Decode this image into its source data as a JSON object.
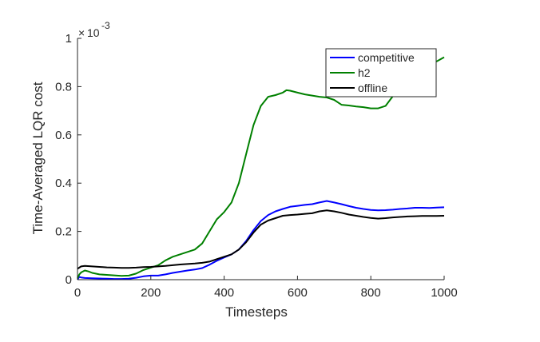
{
  "chart_data": {
    "type": "line",
    "title": "",
    "xlabel": "Timesteps",
    "ylabel": "Time-Averaged LQR cost",
    "y_exponent_label": "10",
    "y_exponent_prefix": "×",
    "y_exponent_power": "-3",
    "xlim": [
      0,
      1000
    ],
    "ylim": [
      0,
      1
    ],
    "xticks": [
      0,
      200,
      400,
      600,
      800,
      1000
    ],
    "yticks": [
      0,
      0.2,
      0.4,
      0.6,
      0.8,
      1
    ],
    "xtick_labels": [
      "0",
      "200",
      "400",
      "600",
      "800",
      "1000"
    ],
    "ytick_labels": [
      "0",
      "0.2",
      "0.4",
      "0.6",
      "0.8",
      "1"
    ],
    "grid": false,
    "legend_position": "top-right",
    "series": [
      {
        "name": "competitive",
        "color": "#0000ff",
        "points": [
          [
            0,
            0.0
          ],
          [
            5,
            0.012
          ],
          [
            10,
            0.009
          ],
          [
            20,
            0.007
          ],
          [
            40,
            0.006
          ],
          [
            60,
            0.005
          ],
          [
            80,
            0.004
          ],
          [
            100,
            0.003
          ],
          [
            120,
            0.003
          ],
          [
            140,
            0.004
          ],
          [
            160,
            0.008
          ],
          [
            180,
            0.014
          ],
          [
            200,
            0.017
          ],
          [
            220,
            0.017
          ],
          [
            240,
            0.022
          ],
          [
            260,
            0.028
          ],
          [
            280,
            0.033
          ],
          [
            300,
            0.038
          ],
          [
            320,
            0.042
          ],
          [
            340,
            0.048
          ],
          [
            360,
            0.062
          ],
          [
            380,
            0.078
          ],
          [
            400,
            0.092
          ],
          [
            420,
            0.105
          ],
          [
            440,
            0.125
          ],
          [
            460,
            0.16
          ],
          [
            480,
            0.205
          ],
          [
            500,
            0.243
          ],
          [
            520,
            0.268
          ],
          [
            540,
            0.283
          ],
          [
            560,
            0.293
          ],
          [
            580,
            0.302
          ],
          [
            600,
            0.306
          ],
          [
            620,
            0.31
          ],
          [
            640,
            0.313
          ],
          [
            660,
            0.32
          ],
          [
            680,
            0.326
          ],
          [
            700,
            0.32
          ],
          [
            720,
            0.313
          ],
          [
            740,
            0.305
          ],
          [
            760,
            0.298
          ],
          [
            780,
            0.293
          ],
          [
            800,
            0.289
          ],
          [
            820,
            0.287
          ],
          [
            840,
            0.288
          ],
          [
            860,
            0.29
          ],
          [
            880,
            0.293
          ],
          [
            900,
            0.295
          ],
          [
            920,
            0.298
          ],
          [
            940,
            0.298
          ],
          [
            960,
            0.297
          ],
          [
            980,
            0.299
          ],
          [
            1000,
            0.3
          ]
        ]
      },
      {
        "name": "h2",
        "color": "#008000",
        "points": [
          [
            0,
            0.005
          ],
          [
            5,
            0.022
          ],
          [
            10,
            0.03
          ],
          [
            20,
            0.038
          ],
          [
            30,
            0.034
          ],
          [
            40,
            0.028
          ],
          [
            60,
            0.022
          ],
          [
            80,
            0.02
          ],
          [
            100,
            0.018
          ],
          [
            120,
            0.016
          ],
          [
            140,
            0.017
          ],
          [
            160,
            0.025
          ],
          [
            180,
            0.04
          ],
          [
            200,
            0.05
          ],
          [
            220,
            0.06
          ],
          [
            240,
            0.08
          ],
          [
            260,
            0.095
          ],
          [
            280,
            0.105
          ],
          [
            300,
            0.115
          ],
          [
            320,
            0.125
          ],
          [
            340,
            0.15
          ],
          [
            360,
            0.2
          ],
          [
            380,
            0.25
          ],
          [
            400,
            0.28
          ],
          [
            420,
            0.32
          ],
          [
            440,
            0.4
          ],
          [
            460,
            0.52
          ],
          [
            480,
            0.64
          ],
          [
            500,
            0.72
          ],
          [
            520,
            0.758
          ],
          [
            540,
            0.765
          ],
          [
            560,
            0.775
          ],
          [
            570,
            0.785
          ],
          [
            580,
            0.783
          ],
          [
            600,
            0.775
          ],
          [
            620,
            0.768
          ],
          [
            640,
            0.763
          ],
          [
            660,
            0.758
          ],
          [
            680,
            0.755
          ],
          [
            700,
            0.745
          ],
          [
            720,
            0.725
          ],
          [
            740,
            0.722
          ],
          [
            760,
            0.718
          ],
          [
            780,
            0.715
          ],
          [
            800,
            0.71
          ],
          [
            820,
            0.71
          ],
          [
            840,
            0.72
          ],
          [
            860,
            0.76
          ],
          [
            880,
            0.82
          ],
          [
            900,
            0.87
          ],
          [
            920,
            0.88
          ],
          [
            940,
            0.89
          ],
          [
            960,
            0.893
          ],
          [
            980,
            0.905
          ],
          [
            1000,
            0.922
          ]
        ]
      },
      {
        "name": "offline",
        "color": "#000000",
        "points": [
          [
            0,
            0.045
          ],
          [
            10,
            0.055
          ],
          [
            20,
            0.057
          ],
          [
            40,
            0.055
          ],
          [
            60,
            0.053
          ],
          [
            80,
            0.051
          ],
          [
            100,
            0.05
          ],
          [
            120,
            0.049
          ],
          [
            140,
            0.049
          ],
          [
            160,
            0.05
          ],
          [
            180,
            0.052
          ],
          [
            200,
            0.053
          ],
          [
            220,
            0.055
          ],
          [
            240,
            0.057
          ],
          [
            260,
            0.06
          ],
          [
            280,
            0.063
          ],
          [
            300,
            0.065
          ],
          [
            320,
            0.067
          ],
          [
            340,
            0.07
          ],
          [
            360,
            0.075
          ],
          [
            380,
            0.085
          ],
          [
            400,
            0.095
          ],
          [
            420,
            0.105
          ],
          [
            440,
            0.125
          ],
          [
            460,
            0.155
          ],
          [
            480,
            0.195
          ],
          [
            500,
            0.228
          ],
          [
            520,
            0.245
          ],
          [
            540,
            0.255
          ],
          [
            560,
            0.265
          ],
          [
            580,
            0.268
          ],
          [
            600,
            0.27
          ],
          [
            620,
            0.273
          ],
          [
            640,
            0.275
          ],
          [
            660,
            0.283
          ],
          [
            680,
            0.287
          ],
          [
            700,
            0.283
          ],
          [
            720,
            0.277
          ],
          [
            740,
            0.27
          ],
          [
            760,
            0.265
          ],
          [
            780,
            0.26
          ],
          [
            800,
            0.256
          ],
          [
            820,
            0.253
          ],
          [
            840,
            0.255
          ],
          [
            860,
            0.258
          ],
          [
            880,
            0.26
          ],
          [
            900,
            0.262
          ],
          [
            920,
            0.263
          ],
          [
            940,
            0.264
          ],
          [
            960,
            0.264
          ],
          [
            980,
            0.264
          ],
          [
            1000,
            0.265
          ]
        ]
      }
    ]
  }
}
